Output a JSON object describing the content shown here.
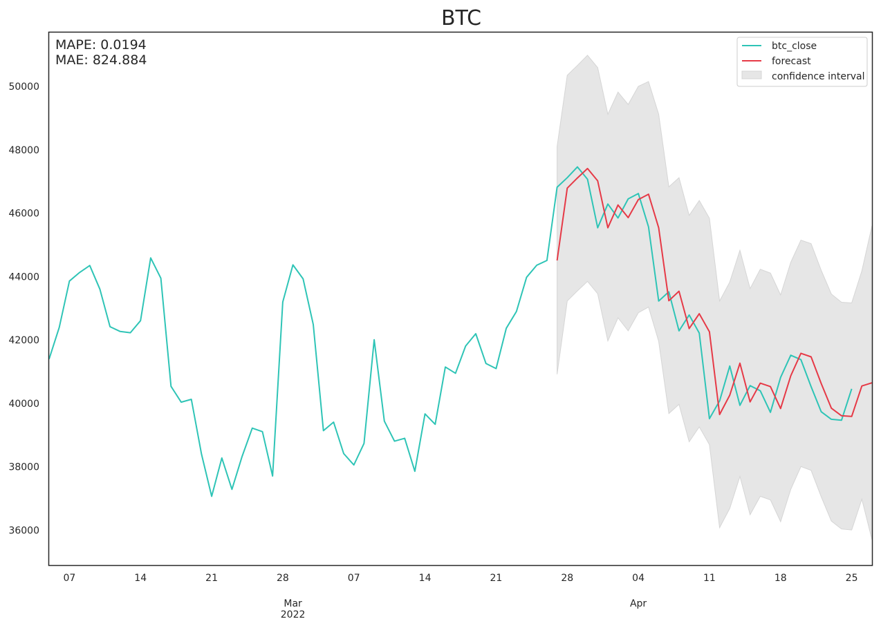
{
  "chart_data": {
    "type": "line",
    "title": "BTC",
    "metrics": {
      "mape": "MAPE: 0.0194",
      "mae": "MAE: 824.884"
    },
    "colors": {
      "btc_close": "#2ec4b6",
      "forecast": "#e63946",
      "confidence_interval": "#e6e6e6"
    },
    "legend": {
      "placement": "top-right",
      "entries": [
        {
          "key": "btc_close",
          "label": "btc_close"
        },
        {
          "key": "forecast",
          "label": "forecast"
        },
        {
          "key": "confidence_interval",
          "label": "confidence interval"
        }
      ]
    },
    "grid": false,
    "xlim": [
      "2022-02-05",
      "2022-04-27"
    ],
    "ylim": [
      34900,
      51700
    ],
    "yticks": [
      36000,
      38000,
      40000,
      42000,
      44000,
      46000,
      48000,
      50000
    ],
    "xticks": [
      {
        "date": "2022-02-07",
        "label": "07"
      },
      {
        "date": "2022-02-14",
        "label": "14"
      },
      {
        "date": "2022-02-21",
        "label": "21"
      },
      {
        "date": "2022-02-28",
        "label": "28"
      },
      {
        "date": "2022-03-07",
        "label": "07"
      },
      {
        "date": "2022-03-14",
        "label": "14"
      },
      {
        "date": "2022-03-21",
        "label": "21"
      },
      {
        "date": "2022-03-28",
        "label": "28"
      },
      {
        "date": "2022-04-04",
        "label": "04"
      },
      {
        "date": "2022-04-11",
        "label": "11"
      },
      {
        "date": "2022-04-18",
        "label": "18"
      },
      {
        "date": "2022-04-25",
        "label": "25"
      }
    ],
    "month_labels": [
      {
        "date": "2022-03-01",
        "label": "Mar",
        "year": "2022"
      },
      {
        "date": "2022-04-04",
        "label": "Apr",
        "year": ""
      }
    ],
    "series": [
      {
        "key": "btc_close",
        "name": "btc_close",
        "x": [
          "2022-02-05",
          "2022-02-06",
          "2022-02-07",
          "2022-02-08",
          "2022-02-09",
          "2022-02-10",
          "2022-02-11",
          "2022-02-12",
          "2022-02-13",
          "2022-02-14",
          "2022-02-15",
          "2022-02-16",
          "2022-02-17",
          "2022-02-18",
          "2022-02-19",
          "2022-02-20",
          "2022-02-21",
          "2022-02-22",
          "2022-02-23",
          "2022-02-24",
          "2022-02-25",
          "2022-02-26",
          "2022-02-27",
          "2022-02-28",
          "2022-03-01",
          "2022-03-02",
          "2022-03-03",
          "2022-03-04",
          "2022-03-05",
          "2022-03-06",
          "2022-03-07",
          "2022-03-08",
          "2022-03-09",
          "2022-03-10",
          "2022-03-11",
          "2022-03-12",
          "2022-03-13",
          "2022-03-14",
          "2022-03-15",
          "2022-03-16",
          "2022-03-17",
          "2022-03-18",
          "2022-03-19",
          "2022-03-20",
          "2022-03-21",
          "2022-03-22",
          "2022-03-23",
          "2022-03-24",
          "2022-03-25",
          "2022-03-26",
          "2022-03-27",
          "2022-03-28",
          "2022-03-29",
          "2022-03-30",
          "2022-03-31",
          "2022-04-01",
          "2022-04-02",
          "2022-04-03",
          "2022-04-04",
          "2022-04-05",
          "2022-04-06",
          "2022-04-07",
          "2022-04-08",
          "2022-04-09",
          "2022-04-10",
          "2022-04-11",
          "2022-04-12",
          "2022-04-13",
          "2022-04-14",
          "2022-04-15",
          "2022-04-16",
          "2022-04-17",
          "2022-04-18",
          "2022-04-19",
          "2022-04-20",
          "2022-04-21",
          "2022-04-22",
          "2022-04-23",
          "2022-04-24",
          "2022-04-25"
        ],
        "y": [
          41400,
          42400,
          43860,
          44130,
          44350,
          43600,
          42420,
          42270,
          42230,
          42610,
          44590,
          43950,
          40540,
          40040,
          40130,
          38400,
          37070,
          38280,
          37290,
          38330,
          39220,
          39110,
          37710,
          43200,
          44370,
          43930,
          42490,
          39140,
          39410,
          38420,
          38060,
          38740,
          42010,
          39440,
          38810,
          38900,
          37860,
          39670,
          39340,
          41150,
          40950,
          41810,
          42200,
          41260,
          41100,
          42370,
          42900,
          43980,
          44360,
          44510,
          46820,
          47120,
          47460,
          47070,
          45540,
          46290,
          45850,
          46450,
          46620,
          45570,
          43230,
          43520,
          42290,
          42790,
          42220,
          39520,
          40080,
          41180,
          39940,
          40560,
          40400,
          39720,
          40820,
          41520,
          41380,
          40530,
          39740,
          39500,
          39470,
          40460
        ]
      },
      {
        "key": "forecast",
        "name": "forecast",
        "x": [
          "2022-03-27",
          "2022-03-28",
          "2022-03-29",
          "2022-03-30",
          "2022-03-31",
          "2022-04-01",
          "2022-04-02",
          "2022-04-03",
          "2022-04-04",
          "2022-04-05",
          "2022-04-06",
          "2022-04-07",
          "2022-04-08",
          "2022-04-09",
          "2022-04-10",
          "2022-04-11",
          "2022-04-12",
          "2022-04-13",
          "2022-04-14",
          "2022-04-15",
          "2022-04-16",
          "2022-04-17",
          "2022-04-18",
          "2022-04-19",
          "2022-04-20",
          "2022-04-21",
          "2022-04-22",
          "2022-04-23",
          "2022-04-24",
          "2022-04-25",
          "2022-04-26",
          "2022-04-27"
        ],
        "y": [
          44510,
          46790,
          47110,
          47410,
          47020,
          45540,
          46260,
          45860,
          46430,
          46600,
          45540,
          43240,
          43540,
          42360,
          42830,
          42260,
          39650,
          40260,
          41270,
          40050,
          40640,
          40530,
          39840,
          40870,
          41580,
          41470,
          40630,
          39850,
          39610,
          39590,
          40550,
          40650
        ]
      }
    ],
    "confidence_interval": {
      "x": [
        "2022-03-27",
        "2022-03-28",
        "2022-03-29",
        "2022-03-30",
        "2022-03-31",
        "2022-04-01",
        "2022-04-02",
        "2022-04-03",
        "2022-04-04",
        "2022-04-05",
        "2022-04-06",
        "2022-04-07",
        "2022-04-08",
        "2022-04-09",
        "2022-04-10",
        "2022-04-11",
        "2022-04-12",
        "2022-04-13",
        "2022-04-14",
        "2022-04-15",
        "2022-04-16",
        "2022-04-17",
        "2022-04-18",
        "2022-04-19",
        "2022-04-20",
        "2022-04-21",
        "2022-04-22",
        "2022-04-23",
        "2022-04-24",
        "2022-04-25",
        "2022-04-26",
        "2022-04-27"
      ],
      "upper": [
        48100,
        50350,
        50660,
        50980,
        50590,
        49120,
        49820,
        49430,
        50000,
        50150,
        49120,
        46830,
        47120,
        45930,
        46400,
        45840,
        43230,
        43830,
        44830,
        43620,
        44230,
        44110,
        43420,
        44450,
        45150,
        45040,
        44200,
        43450,
        43190,
        43170,
        44180,
        45600
      ],
      "lower": [
        40920,
        43230,
        43550,
        43850,
        43460,
        41970,
        42700,
        42290,
        42860,
        43040,
        41960,
        39680,
        39970,
        38790,
        39260,
        38700,
        36080,
        36690,
        37700,
        36490,
        37070,
        36960,
        36270,
        37290,
        38010,
        37890,
        37060,
        36290,
        36040,
        36010,
        36980,
        35700
      ]
    }
  }
}
